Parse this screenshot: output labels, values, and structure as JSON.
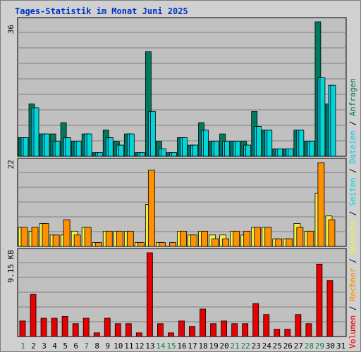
{
  "title": "Tages-Statistik im Monat Juni 2025",
  "colors": {
    "anfragen": "#007a5e",
    "dateien": "#00c8f0",
    "seiten": "#00d8d8",
    "besuche": "#f0f048",
    "rechner": "#ff9000",
    "volumen": "#e80000",
    "plot_bg": "#c0c0c0",
    "gridline": "#808080",
    "weekend_label": "#008040",
    "weekday_label": "#000000"
  },
  "side_legend": {
    "volumen": "Volumen",
    "rechner": "Rechner",
    "besuche": "Besuche",
    "seiten": "Seiten",
    "dateien": "Dateien",
    "anfragen": "Anfragen",
    "separator": " / "
  },
  "chart_data": {
    "type": "bar",
    "title": "Tages-Statistik im Monat Juni 2025",
    "days": [
      "1",
      "2",
      "3",
      "4",
      "5",
      "6",
      "7",
      "8",
      "9",
      "10",
      "11",
      "12",
      "13",
      "14",
      "15",
      "16",
      "17",
      "18",
      "19",
      "20",
      "21",
      "22",
      "23",
      "24",
      "25",
      "26",
      "27",
      "28",
      "29",
      "30",
      "31"
    ],
    "weekend_days": [
      "1",
      "7",
      "14",
      "15",
      "21",
      "22",
      "28",
      "29"
    ],
    "panels": [
      {
        "name": "top",
        "ymax_label": "36",
        "ymax": 36,
        "series": [
          {
            "name": "Anfragen",
            "key": "anfragen",
            "values": [
              5,
              14,
              6,
              6,
              9,
              4,
              6,
              1,
              7,
              4,
              6,
              1,
              28,
              4,
              1,
              5,
              3,
              9,
              4,
              6,
              4,
              4,
              12,
              7,
              2,
              2,
              7,
              4,
              36,
              14,
              0
            ]
          },
          {
            "name": "Dateien",
            "key": "dateien",
            "values": [
              5,
              13,
              6,
              4,
              5,
              4,
              6,
              1,
              5,
              3,
              6,
              1,
              12,
              2,
              1,
              5,
              3,
              7,
              4,
              4,
              4,
              3,
              8,
              7,
              2,
              2,
              7,
              4,
              21,
              19,
              0
            ]
          },
          {
            "name": "Seiten",
            "key": "seiten",
            "values": [
              5,
              13,
              6,
              4,
              5,
              4,
              6,
              1,
              5,
              3,
              6,
              1,
              12,
              2,
              1,
              5,
              3,
              7,
              4,
              4,
              4,
              3,
              8,
              7,
              2,
              2,
              7,
              4,
              21,
              19,
              0
            ]
          }
        ]
      },
      {
        "name": "middle",
        "ymax_label": "22",
        "ymax": 22,
        "series": [
          {
            "name": "Besuche",
            "key": "besuche",
            "values": [
              5,
              4,
              6,
              3,
              3,
              4,
              5,
              1,
              4,
              4,
              4,
              1,
              11,
              1,
              0,
              4,
              3,
              4,
              3,
              3,
              4,
              3,
              5,
              5,
              2,
              2,
              6,
              4,
              14,
              8,
              0
            ]
          },
          {
            "name": "Rechner",
            "key": "rechner",
            "values": [
              5,
              5,
              6,
              3,
              7,
              3,
              5,
              1,
              4,
              4,
              4,
              1,
              20,
              1,
              1,
              4,
              3,
              4,
              2,
              2,
              4,
              4,
              5,
              5,
              2,
              2,
              5,
              4,
              22,
              7,
              0
            ]
          }
        ]
      },
      {
        "name": "bottom",
        "ymax_label": "9.15 KB",
        "ymax_kb": 9.15,
        "series": [
          {
            "name": "Volumen",
            "key": "volumen",
            "values_kb": [
              1.7,
              4.6,
              2.0,
              2.0,
              2.2,
              1.4,
              2.0,
              0.4,
              2.0,
              1.4,
              1.4,
              0.4,
              9.15,
              1.4,
              0.4,
              1.7,
              1.1,
              3.0,
              1.4,
              1.7,
              1.4,
              1.4,
              3.6,
              2.4,
              0.8,
              0.8,
              2.4,
              1.4,
              7.9,
              6.1,
              0
            ]
          }
        ]
      }
    ]
  }
}
